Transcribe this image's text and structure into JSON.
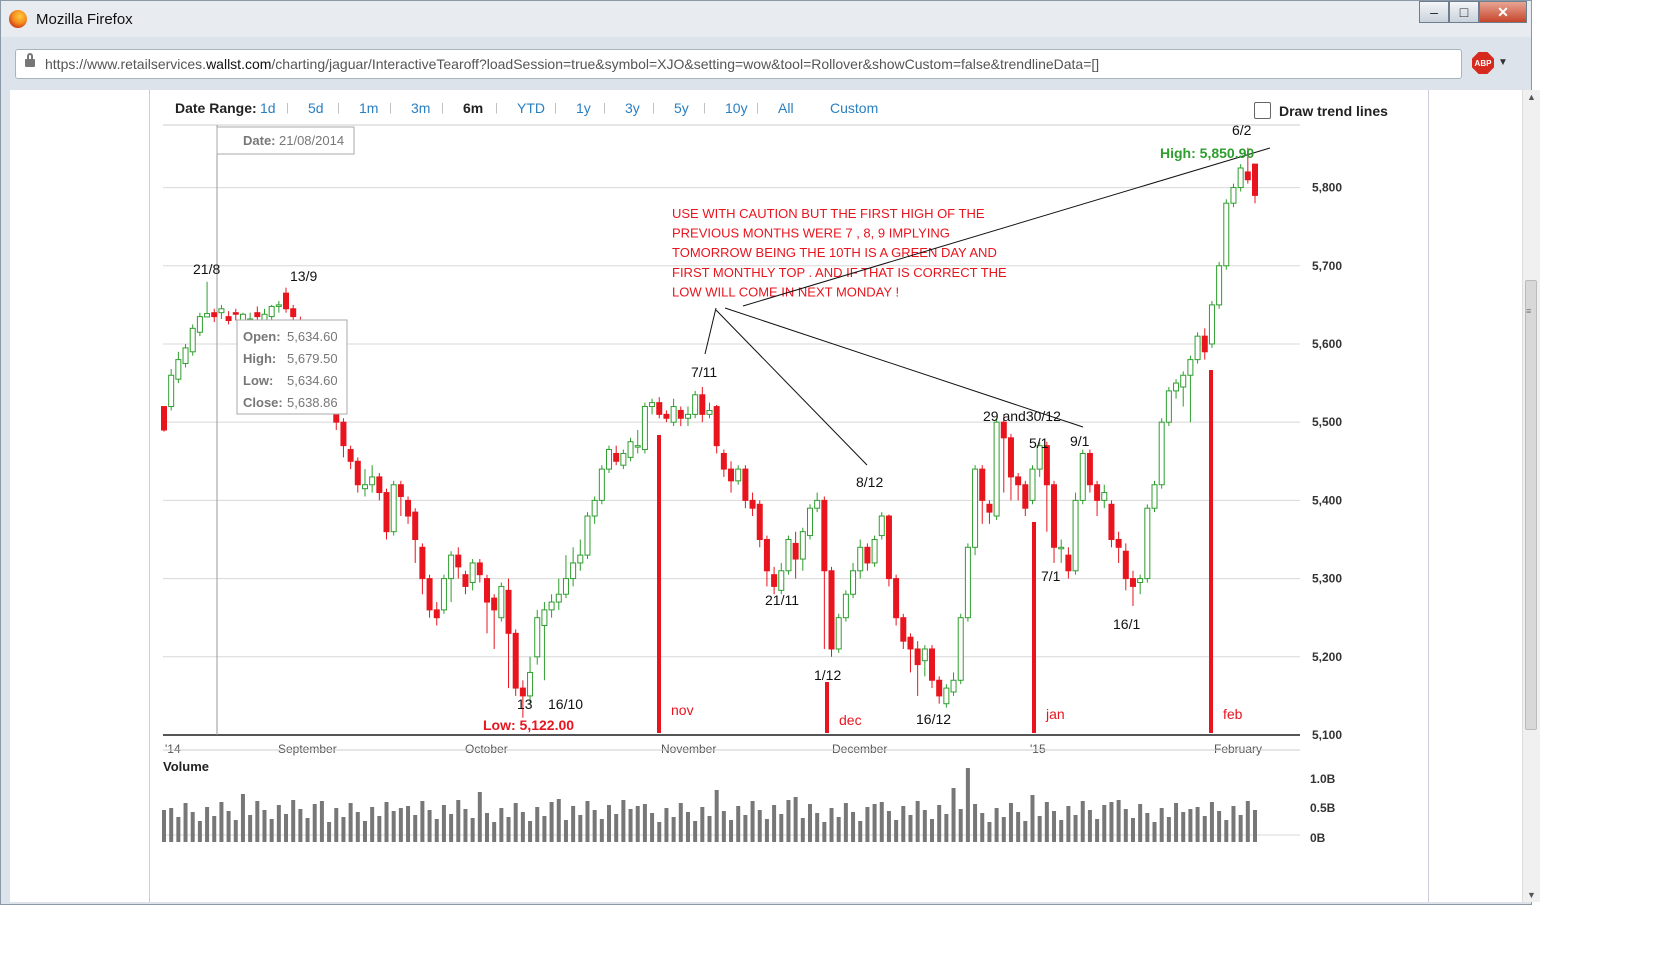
{
  "window": {
    "title": "Mozilla Firefox",
    "min": "–",
    "max": "□",
    "close": "✕"
  },
  "browser": {
    "url_prefix": "https://www.retailservices.",
    "url_domain": "wallst.com",
    "url_suffix": "/charting/jaguar/InteractiveTearoff?loadSession=true&symbol=XJO&setting=wow&tool=Rollover&showCustom=false&trendlineData=[]",
    "abp": "ABP"
  },
  "toolbar": {
    "date_range_label": "Date Range:",
    "ranges": [
      "1d",
      "5d",
      "1m",
      "3m",
      "6m",
      "YTD",
      "1y",
      "3y",
      "5y",
      "10y",
      "All",
      "Custom"
    ],
    "active_range": "6m",
    "trend_label": "Draw trend lines"
  },
  "tooltip": {
    "date_label": "Date:",
    "date": "21/08/2014",
    "open_label": "Open:",
    "open": "5,634.60",
    "high_label": "High:",
    "high": "5,679.50",
    "low_label": "Low:",
    "low": "5,634.60",
    "close_label": "Close:",
    "close": "5,638.86"
  },
  "colors": {
    "up": "#2e9e2e",
    "down": "#e8141e",
    "grid": "#d8d8d8",
    "annotation": "#e8141e",
    "high": "#2e9e2e"
  },
  "chart_data": {
    "type": "candlestick",
    "symbol": "XJO",
    "ylim": [
      5100,
      5880
    ],
    "yticks": [
      "5,800",
      "5,700",
      "5,600",
      "5,500",
      "5,400",
      "5,300",
      "5,200",
      "5,100"
    ],
    "xticks": [
      "'14",
      "September",
      "October",
      "November",
      "December",
      "'15",
      "February"
    ],
    "high_label": "High: 5,850.90",
    "low_label": "Low: 5,122.00",
    "candles": [
      [
        5520,
        5490,
        5520,
        5488
      ],
      [
        5520,
        5560,
        5568,
        5515
      ],
      [
        5555,
        5580,
        5590,
        5550
      ],
      [
        5575,
        5595,
        5600,
        5570
      ],
      [
        5590,
        5620,
        5625,
        5585
      ],
      [
        5615,
        5635,
        5640,
        5610
      ],
      [
        5634.6,
        5638.86,
        5679.5,
        5634.6
      ],
      [
        5640,
        5635,
        5645,
        5628
      ],
      [
        5640,
        5645,
        5650,
        5632
      ],
      [
        5635,
        5630,
        5642,
        5625
      ],
      [
        5640,
        5638,
        5645,
        5630
      ],
      [
        5630,
        5638,
        5640,
        5625
      ],
      [
        5625,
        5632,
        5640,
        5620
      ],
      [
        5640,
        5635,
        5648,
        5630
      ],
      [
        5630,
        5638,
        5645,
        5625
      ],
      [
        5635,
        5648,
        5650,
        5630
      ],
      [
        5648,
        5650,
        5655,
        5640
      ],
      [
        5665,
        5645,
        5672,
        5640
      ],
      [
        5645,
        5635,
        5650,
        5625
      ],
      [
        5630,
        5615,
        5635,
        5605
      ],
      [
        5610,
        5590,
        5615,
        5580
      ],
      [
        5590,
        5570,
        5595,
        5560
      ],
      [
        5565,
        5550,
        5570,
        5540
      ],
      [
        5540,
        5525,
        5545,
        5515
      ],
      [
        5520,
        5500,
        5525,
        5490
      ],
      [
        5500,
        5470,
        5505,
        5455
      ],
      [
        5465,
        5450,
        5470,
        5440
      ],
      [
        5450,
        5420,
        5455,
        5410
      ],
      [
        5415,
        5420,
        5440,
        5405
      ],
      [
        5420,
        5430,
        5445,
        5410
      ],
      [
        5430,
        5410,
        5435,
        5400
      ],
      [
        5410,
        5360,
        5415,
        5350
      ],
      [
        5360,
        5420,
        5425,
        5355
      ],
      [
        5420,
        5405,
        5425,
        5380
      ],
      [
        5400,
        5380,
        5405,
        5370
      ],
      [
        5385,
        5350,
        5390,
        5320
      ],
      [
        5340,
        5300,
        5345,
        5280
      ],
      [
        5300,
        5260,
        5305,
        5250
      ],
      [
        5260,
        5250,
        5270,
        5240
      ],
      [
        5260,
        5300,
        5305,
        5255
      ],
      [
        5300,
        5330,
        5335,
        5270
      ],
      [
        5330,
        5315,
        5340,
        5300
      ],
      [
        5305,
        5290,
        5310,
        5280
      ],
      [
        5295,
        5320,
        5325,
        5285
      ],
      [
        5320,
        5305,
        5325,
        5295
      ],
      [
        5300,
        5270,
        5305,
        5230
      ],
      [
        5275,
        5260,
        5280,
        5210
      ],
      [
        5250,
        5290,
        5295,
        5245
      ],
      [
        5285,
        5230,
        5300,
        5160
      ],
      [
        5230,
        5160,
        5235,
        5150
      ],
      [
        5160,
        5150,
        5170,
        5122
      ],
      [
        5150,
        5180,
        5200,
        5140
      ],
      [
        5200,
        5250,
        5260,
        5190
      ],
      [
        5240,
        5260,
        5270,
        5170
      ],
      [
        5260,
        5270,
        5280,
        5250
      ],
      [
        5270,
        5280,
        5300,
        5260
      ],
      [
        5280,
        5300,
        5330,
        5275
      ],
      [
        5300,
        5320,
        5340,
        5290
      ],
      [
        5320,
        5330,
        5350,
        5310
      ],
      [
        5330,
        5380,
        5385,
        5325
      ],
      [
        5380,
        5400,
        5405,
        5370
      ],
      [
        5400,
        5440,
        5445,
        5395
      ],
      [
        5440,
        5465,
        5470,
        5435
      ],
      [
        5460,
        5450,
        5470,
        5445
      ],
      [
        5445,
        5460,
        5465,
        5440
      ],
      [
        5455,
        5475,
        5480,
        5450
      ],
      [
        5470,
        5470,
        5490,
        5460
      ],
      [
        5465,
        5520,
        5525,
        5460
      ],
      [
        5520,
        5525,
        5530,
        5510
      ],
      [
        5525,
        5510,
        5532,
        5505
      ],
      [
        5510,
        5505,
        5515,
        5500
      ],
      [
        5500,
        5520,
        5530,
        5495
      ],
      [
        5515,
        5505,
        5520,
        5495
      ],
      [
        5505,
        5510,
        5520,
        5495
      ],
      [
        5510,
        5535,
        5540,
        5505
      ],
      [
        5535,
        5510,
        5545,
        5500
      ],
      [
        5510,
        5515,
        5525,
        5505
      ],
      [
        5520,
        5470,
        5522,
        5460
      ],
      [
        5460,
        5440,
        5465,
        5430
      ],
      [
        5440,
        5425,
        5450,
        5410
      ],
      [
        5425,
        5440,
        5445,
        5420
      ],
      [
        5440,
        5400,
        5445,
        5390
      ],
      [
        5400,
        5390,
        5410,
        5380
      ],
      [
        5395,
        5350,
        5400,
        5340
      ],
      [
        5350,
        5310,
        5355,
        5290
      ],
      [
        5305,
        5290,
        5315,
        5280
      ],
      [
        5285,
        5310,
        5320,
        5280
      ],
      [
        5310,
        5350,
        5355,
        5305
      ],
      [
        5345,
        5325,
        5360,
        5300
      ],
      [
        5325,
        5360,
        5365,
        5310
      ],
      [
        5355,
        5390,
        5395,
        5350
      ],
      [
        5390,
        5400,
        5410,
        5385
      ],
      [
        5400,
        5310,
        5405,
        5210
      ],
      [
        5310,
        5210,
        5315,
        5200
      ],
      [
        5210,
        5250,
        5255,
        5205
      ],
      [
        5250,
        5280,
        5285,
        5245
      ],
      [
        5280,
        5310,
        5320,
        5275
      ],
      [
        5310,
        5340,
        5350,
        5300
      ],
      [
        5340,
        5320,
        5345,
        5310
      ],
      [
        5320,
        5350,
        5355,
        5315
      ],
      [
        5355,
        5380,
        5385,
        5350
      ],
      [
        5380,
        5300,
        5382,
        5290
      ],
      [
        5300,
        5250,
        5305,
        5240
      ],
      [
        5250,
        5220,
        5255,
        5210
      ],
      [
        5225,
        5210,
        5230,
        5180
      ],
      [
        5210,
        5190,
        5220,
        5150
      ],
      [
        5195,
        5210,
        5215,
        5175
      ],
      [
        5210,
        5170,
        5215,
        5160
      ],
      [
        5170,
        5150,
        5175,
        5140
      ],
      [
        5140,
        5160,
        5165,
        5135
      ],
      [
        5155,
        5170,
        5180,
        5150
      ],
      [
        5170,
        5250,
        5255,
        5165
      ],
      [
        5250,
        5340,
        5345,
        5245
      ],
      [
        5340,
        5440,
        5445,
        5330
      ],
      [
        5440,
        5400,
        5445,
        5370
      ],
      [
        5395,
        5385,
        5400,
        5370
      ],
      [
        5380,
        5500,
        5505,
        5375
      ],
      [
        5500,
        5480,
        5510,
        5410
      ],
      [
        5480,
        5430,
        5485,
        5400
      ],
      [
        5430,
        5420,
        5435,
        5400
      ],
      [
        5420,
        5390,
        5425,
        5380
      ],
      [
        5400,
        5440,
        5445,
        5395
      ],
      [
        5440,
        5470,
        5475,
        5430
      ],
      [
        5470,
        5420,
        5475,
        5360
      ],
      [
        5420,
        5340,
        5425,
        5320
      ],
      [
        5340,
        5340,
        5350,
        5320
      ],
      [
        5330,
        5310,
        5340,
        5300
      ],
      [
        5310,
        5400,
        5410,
        5305
      ],
      [
        5400,
        5460,
        5465,
        5395
      ],
      [
        5460,
        5420,
        5465,
        5410
      ],
      [
        5420,
        5400,
        5425,
        5380
      ],
      [
        5400,
        5410,
        5420,
        5390
      ],
      [
        5395,
        5350,
        5400,
        5340
      ],
      [
        5350,
        5340,
        5360,
        5320
      ],
      [
        5335,
        5300,
        5345,
        5285
      ],
      [
        5300,
        5290,
        5310,
        5265
      ],
      [
        5295,
        5300,
        5305,
        5280
      ],
      [
        5300,
        5390,
        5395,
        5295
      ],
      [
        5390,
        5420,
        5425,
        5385
      ],
      [
        5420,
        5500,
        5505,
        5415
      ],
      [
        5500,
        5540,
        5545,
        5495
      ],
      [
        5540,
        5550,
        5555,
        5530
      ],
      [
        5545,
        5560,
        5565,
        5520
      ],
      [
        5560,
        5580,
        5585,
        5500
      ],
      [
        5580,
        5610,
        5615,
        5575
      ],
      [
        5610,
        5590,
        5620,
        5580
      ],
      [
        5600,
        5650,
        5655,
        5595
      ],
      [
        5650,
        5700,
        5705,
        5645
      ],
      [
        5700,
        5780,
        5785,
        5695
      ],
      [
        5780,
        5800,
        5805,
        5775
      ],
      [
        5800,
        5825,
        5830,
        5795
      ],
      [
        5820,
        5810,
        5850.9,
        5805
      ],
      [
        5830,
        5790,
        5830,
        5780
      ]
    ],
    "volume": {
      "label": "Volume",
      "ticks": [
        "1.0B",
        "0.5B",
        "0B"
      ]
    },
    "annotation": "USE WITH CAUTION BUT THE FIRST HIGH OF THE\nPREVIOUS MONTHS WERE 7 , 8, 9 IMPLYING\nTOMORROW BEING THE 10TH IS A GREEN DAY AND\nFIRST MONTHLY TOP . AND IF THAT IS CORRECT THE\nLOW WILL COME IN NEXT MONDAY !",
    "date_labels": [
      "21/8",
      "13/9",
      "7/11",
      "8/12",
      "29 and30/12",
      "5/1",
      "9/1",
      "6/2",
      "21/11",
      "1/12",
      "16/12",
      "7/1",
      "16/1",
      "13",
      "16/10"
    ],
    "month_markers": [
      "nov",
      "dec",
      "jan",
      "feb"
    ]
  }
}
